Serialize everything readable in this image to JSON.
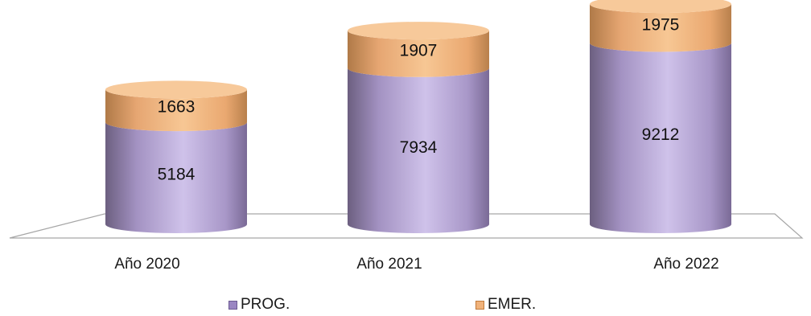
{
  "chart_data": {
    "type": "bar",
    "stacked": true,
    "style": "3d-cylinder",
    "categories": [
      "Año 2020",
      "Año 2021",
      "Año 2022"
    ],
    "series": [
      {
        "name": "PROG.",
        "values": [
          5184,
          7934,
          9212
        ],
        "color": "#b7a6d8"
      },
      {
        "name": "EMER.",
        "values": [
          1663,
          1907,
          1975
        ],
        "color": "#f2b27a"
      }
    ],
    "title": "",
    "xlabel": "",
    "ylabel": "",
    "ylim": [
      0,
      11187
    ],
    "grid": false,
    "legend_position": "bottom"
  },
  "legend": {
    "items": [
      {
        "label": "PROG.",
        "color": "#9a86c2"
      },
      {
        "label": "EMER.",
        "color": "#f0b27a"
      }
    ]
  }
}
